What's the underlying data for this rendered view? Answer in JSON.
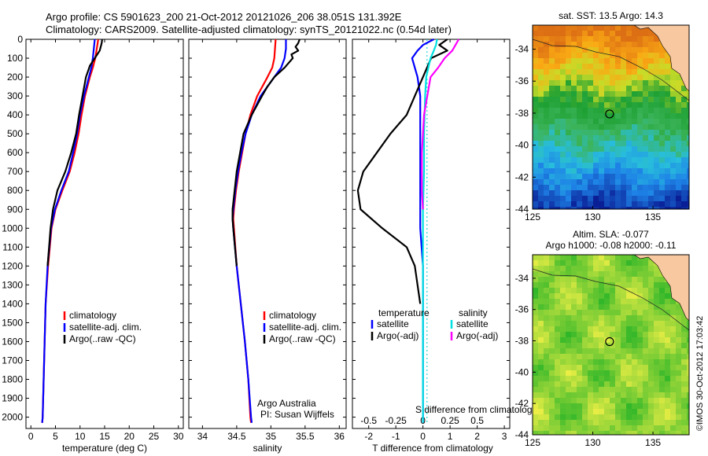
{
  "header": {
    "title_line1": "Argo profile: CS 5901623_200 21-Oct-2012 20121026_206 38.051S 131.392E",
    "title_line2": "Climatology: CARS2009. Satellite-adjusted climatology: synTS_20121022.nc (0.54d later)"
  },
  "colors": {
    "climatology": "#ff0000",
    "satellite": "#0000ff",
    "argo": "#000000",
    "salinity_satellite": "#00e0e0",
    "salinity_argo": "#ff00ff",
    "land": "#f8c8a0"
  },
  "chart_data": [
    {
      "type": "line",
      "name": "temperature-profile",
      "xlabel": "temperature (deg C)",
      "ylabel": "",
      "xlim": [
        -1,
        31
      ],
      "ylim": [
        2060,
        0
      ],
      "xticks": [
        0,
        5,
        10,
        15,
        20,
        25,
        30
      ],
      "yticks": [
        0,
        100,
        200,
        300,
        400,
        500,
        600,
        700,
        800,
        900,
        1000,
        1100,
        1200,
        1300,
        1400,
        1500,
        1600,
        1700,
        1800,
        1900,
        2000
      ],
      "legend": [
        "climatology",
        "satellite-adj. clim.",
        "Argo(..raw -QC)"
      ],
      "series": [
        {
          "name": "climatology",
          "color_key": "climatology",
          "depth": [
            0,
            50,
            100,
            150,
            200,
            300,
            400,
            500,
            600,
            700,
            800,
            900,
            1000,
            1200,
            1400,
            1600,
            1800,
            2000,
            2030
          ],
          "values": [
            13.7,
            13.4,
            13.1,
            12.6,
            12.0,
            11.0,
            10.3,
            9.7,
            8.9,
            7.9,
            6.4,
            5.0,
            4.2,
            3.5,
            3.0,
            2.8,
            2.6,
            2.4,
            2.3
          ]
        },
        {
          "name": "satellite-adj. clim.",
          "color_key": "satellite",
          "depth": [
            0,
            50,
            100,
            150,
            200,
            300,
            400,
            500,
            600,
            700,
            800,
            900,
            1000,
            1200,
            1400,
            1600,
            1800,
            2000,
            2030
          ],
          "values": [
            13.0,
            12.8,
            12.6,
            12.3,
            11.8,
            10.8,
            10.0,
            9.4,
            8.6,
            7.7,
            6.2,
            4.9,
            4.1,
            3.4,
            3.0,
            2.8,
            2.6,
            2.4,
            2.3
          ]
        },
        {
          "name": "Argo(..raw -QC)",
          "color_key": "argo",
          "depth": [
            0,
            20,
            60,
            100,
            140,
            200,
            300,
            400,
            500,
            600,
            700,
            800,
            900,
            1000,
            1200
          ],
          "values": [
            14.5,
            14.4,
            14.0,
            13.0,
            12.0,
            11.2,
            10.5,
            9.8,
            9.2,
            8.2,
            7.0,
            5.4,
            4.5,
            4.0,
            3.4
          ]
        }
      ]
    },
    {
      "type": "line",
      "name": "salinity-profile",
      "xlabel": "salinity",
      "ylabel": "",
      "xlim": [
        33.8,
        36.1
      ],
      "ylim": [
        2060,
        0
      ],
      "xticks": [
        34,
        34.5,
        35,
        35.5,
        36
      ],
      "legend": [
        "climatology",
        "satellite-adj. clim.",
        "Argo(..raw -QC)"
      ],
      "annotation": [
        "Argo Australia",
        "PI: Susan Wijffels"
      ],
      "series": [
        {
          "name": "climatology",
          "color_key": "climatology",
          "depth": [
            0,
            50,
            100,
            150,
            200,
            300,
            400,
            500,
            600,
            700,
            800,
            900,
            950,
            1000,
            1200,
            1400,
            1600,
            1800,
            2000,
            2030
          ],
          "values": [
            35.07,
            35.06,
            35.05,
            35.02,
            34.95,
            34.8,
            34.7,
            34.63,
            34.58,
            34.53,
            34.49,
            34.46,
            34.45,
            34.46,
            34.5,
            34.56,
            34.62,
            34.67,
            34.7,
            34.71
          ]
        },
        {
          "name": "satellite-adj. clim.",
          "color_key": "satellite",
          "depth": [
            0,
            50,
            100,
            150,
            200,
            300,
            400,
            500,
            600,
            700,
            800,
            900,
            950,
            1000,
            1200,
            1400,
            1600,
            1800,
            2000,
            2030
          ],
          "values": [
            35.22,
            35.22,
            35.2,
            35.15,
            35.05,
            34.85,
            34.72,
            34.63,
            34.57,
            34.52,
            34.48,
            34.45,
            34.44,
            34.45,
            34.5,
            34.56,
            34.62,
            34.67,
            34.71,
            34.72
          ]
        },
        {
          "name": "Argo(..raw -QC)",
          "color_key": "argo",
          "depth": [
            0,
            20,
            40,
            60,
            80,
            100,
            150,
            200,
            250,
            300,
            400,
            500,
            600,
            700,
            800,
            900,
            950,
            1000,
            1200
          ],
          "values": [
            35.42,
            35.4,
            35.36,
            35.4,
            35.3,
            35.32,
            35.2,
            35.05,
            34.95,
            34.87,
            34.72,
            34.6,
            34.55,
            34.5,
            34.47,
            34.44,
            34.44,
            34.45,
            34.5
          ]
        }
      ]
    },
    {
      "type": "line",
      "name": "difference-profile",
      "xlabel_top": "S difference from climatology",
      "xlabel": "T difference from climatology",
      "xlim": [
        -2.6,
        3.2
      ],
      "ylim": [
        2060,
        0
      ],
      "xticks_T": [
        -2,
        -1,
        0,
        1,
        2,
        3
      ],
      "xticks_S": [
        "-0.5",
        "-0.25",
        "0",
        "0.25",
        "0.5"
      ],
      "legend_left_title": "temperature",
      "legend_right_title": "salinity",
      "legend": [
        "satellite",
        "Argo(-adj)",
        "satellite",
        "Argo(-adj)"
      ],
      "series": [
        {
          "name": "temperature satellite",
          "color_key": "satellite",
          "depth": [
            0,
            30,
            60,
            100,
            150,
            200,
            300,
            400,
            600,
            800,
            1000,
            1200,
            1600,
            2030
          ],
          "values": [
            0.4,
            0.0,
            -0.2,
            -0.4,
            -0.3,
            -0.2,
            -0.1,
            -0.1,
            -0.1,
            -0.1,
            -0.1,
            0.0,
            0.0,
            0.0
          ]
        },
        {
          "name": "temperature Argo(-adj)",
          "color_key": "argo",
          "depth": [
            0,
            30,
            60,
            100,
            200,
            300,
            400,
            500,
            600,
            700,
            800,
            900,
            1000,
            1100,
            1200,
            1300,
            1400
          ],
          "values": [
            0.9,
            0.6,
            0.9,
            0.3,
            0.0,
            -0.3,
            -0.6,
            -1.2,
            -1.7,
            -2.2,
            -2.4,
            -2.3,
            -1.5,
            -0.6,
            -0.3,
            -0.2,
            -0.1
          ]
        },
        {
          "name": "salinity satellite",
          "color_key": "salinity_satellite",
          "depth": [
            0,
            30,
            60,
            100,
            200,
            300,
            500,
            700,
            900,
            1200,
            1600,
            2030
          ],
          "values": [
            0.13,
            0.12,
            0.1,
            0.07,
            0.03,
            0.02,
            0.01,
            0.01,
            0.0,
            0.0,
            0.0,
            0.0
          ]
        },
        {
          "name": "salinity Argo(-adj)",
          "color_key": "salinity_argo",
          "depth": [
            0,
            30,
            60,
            100,
            150,
            200,
            300,
            400,
            500,
            600,
            700,
            800,
            900
          ],
          "values": [
            0.33,
            0.3,
            0.27,
            0.2,
            0.14,
            0.07,
            0.04,
            0.01,
            0.0,
            -0.01,
            -0.01,
            -0.01,
            0.0
          ]
        }
      ]
    },
    {
      "type": "heatmap",
      "name": "sst-map",
      "title": "sat. SST: 13.5  Argo: 14.3",
      "xlim": [
        125,
        138
      ],
      "ylim": [
        -44,
        -32.5
      ],
      "xticks": [
        125,
        130,
        135
      ],
      "yticks": [
        -34,
        -36,
        -38,
        -40,
        -42,
        -44
      ],
      "marker": {
        "lon": 131.392,
        "lat": -38.051
      }
    },
    {
      "type": "heatmap",
      "name": "sla-map",
      "title_line1": "Altim. SLA: -0.077",
      "title_line2": "Argo h1000: -0.08 h2000: -0.11",
      "xlim": [
        125,
        138
      ],
      "ylim": [
        -44,
        -32.5
      ],
      "xticks": [
        125,
        130,
        135
      ],
      "yticks": [
        -34,
        -36,
        -38,
        -40,
        -42,
        -44
      ],
      "marker": {
        "lon": 131.392,
        "lat": -38.051
      }
    }
  ],
  "footer": {
    "credit": "©IMOS 30-Oct-2012 17:03:42"
  }
}
